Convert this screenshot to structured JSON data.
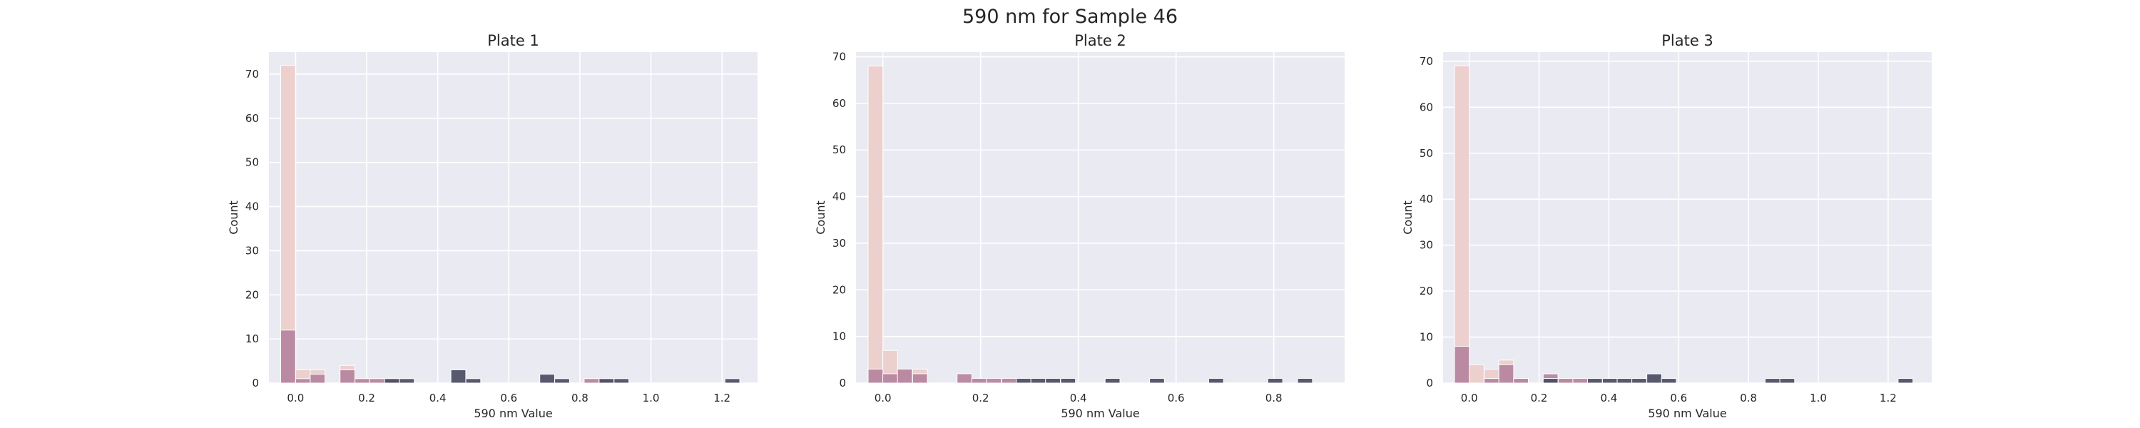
{
  "figure_title": "590 nm for Sample 46",
  "colors": {
    "background": "#eaeaf2",
    "grid": "#ffffff",
    "light": "#ebcdca",
    "mid": "#b583a0",
    "dark": "#4b4b63",
    "edge": "#ffffff"
  },
  "chart_data": [
    {
      "type": "histogram",
      "title": "Plate 1",
      "xlabel": "590 nm Value",
      "ylabel": "Count",
      "xlim": [
        -0.075,
        1.3
      ],
      "ylim": [
        0,
        75
      ],
      "xticks": [
        0.0,
        0.2,
        0.4,
        0.6,
        0.8,
        1.0,
        1.2
      ],
      "xtick_labels": [
        "0.0",
        "0.2",
        "0.4",
        "0.6",
        "0.8",
        "1.0",
        "1.2"
      ],
      "yticks": [
        0,
        10,
        20,
        30,
        40,
        50,
        60,
        70
      ],
      "ytick_labels": [
        "0",
        "10",
        "20",
        "30",
        "40",
        "50",
        "60",
        "70"
      ],
      "bin_width": 0.0417,
      "bins": [
        {
          "x": -0.021,
          "light": 72,
          "mid": 12,
          "dark": 0
        },
        {
          "x": 0.021,
          "light": 3,
          "mid": 1,
          "dark": 0
        },
        {
          "x": 0.062,
          "light": 3,
          "mid": 2,
          "dark": 0
        },
        {
          "x": 0.146,
          "light": 4,
          "mid": 3,
          "dark": 0
        },
        {
          "x": 0.188,
          "light": 1,
          "mid": 1,
          "dark": 0
        },
        {
          "x": 0.229,
          "light": 1,
          "mid": 1,
          "dark": 0
        },
        {
          "x": 0.271,
          "light": 0,
          "mid": 1,
          "dark": 1
        },
        {
          "x": 0.313,
          "light": 0,
          "mid": 0,
          "dark": 1
        },
        {
          "x": 0.458,
          "light": 0,
          "mid": 0,
          "dark": 3
        },
        {
          "x": 0.5,
          "light": 0,
          "mid": 0,
          "dark": 1
        },
        {
          "x": 0.708,
          "light": 0,
          "mid": 0,
          "dark": 2
        },
        {
          "x": 0.75,
          "light": 0,
          "mid": 0,
          "dark": 1
        },
        {
          "x": 0.833,
          "light": 1,
          "mid": 1,
          "dark": 0
        },
        {
          "x": 0.875,
          "light": 0,
          "mid": 1,
          "dark": 1
        },
        {
          "x": 0.917,
          "light": 0,
          "mid": 0,
          "dark": 1
        },
        {
          "x": 1.229,
          "light": 0,
          "mid": 0,
          "dark": 1
        }
      ]
    },
    {
      "type": "histogram",
      "title": "Plate 2",
      "xlabel": "590 nm Value",
      "ylabel": "Count",
      "xlim": [
        -0.055,
        0.945
      ],
      "ylim": [
        0,
        71
      ],
      "xticks": [
        0.0,
        0.2,
        0.4,
        0.6,
        0.8
      ],
      "xtick_labels": [
        "0.0",
        "0.2",
        "0.4",
        "0.6",
        "0.8"
      ],
      "yticks": [
        0,
        10,
        20,
        30,
        40,
        50,
        60,
        70
      ],
      "ytick_labels": [
        "0",
        "10",
        "20",
        "30",
        "40",
        "50",
        "60",
        "70"
      ],
      "bin_width": 0.0303,
      "bins": [
        {
          "x": -0.015,
          "light": 68,
          "mid": 3,
          "dark": 0
        },
        {
          "x": 0.015,
          "light": 7,
          "mid": 2,
          "dark": 0
        },
        {
          "x": 0.045,
          "light": 3,
          "mid": 3,
          "dark": 0
        },
        {
          "x": 0.076,
          "light": 3,
          "mid": 2,
          "dark": 0
        },
        {
          "x": 0.167,
          "light": 0,
          "mid": 2,
          "dark": 0
        },
        {
          "x": 0.197,
          "light": 1,
          "mid": 1,
          "dark": 0
        },
        {
          "x": 0.227,
          "light": 0,
          "mid": 1,
          "dark": 0
        },
        {
          "x": 0.258,
          "light": 1,
          "mid": 1,
          "dark": 0
        },
        {
          "x": 0.288,
          "light": 0,
          "mid": 0,
          "dark": 1
        },
        {
          "x": 0.318,
          "light": 0,
          "mid": 0,
          "dark": 1
        },
        {
          "x": 0.348,
          "light": 0,
          "mid": 0,
          "dark": 1
        },
        {
          "x": 0.379,
          "light": 0,
          "mid": 0,
          "dark": 1
        },
        {
          "x": 0.47,
          "light": 0,
          "mid": 0,
          "dark": 1
        },
        {
          "x": 0.561,
          "light": 0,
          "mid": 0,
          "dark": 1
        },
        {
          "x": 0.682,
          "light": 0,
          "mid": 0,
          "dark": 1
        },
        {
          "x": 0.803,
          "light": 0,
          "mid": 0,
          "dark": 1
        },
        {
          "x": 0.864,
          "light": 0,
          "mid": 0,
          "dark": 1
        }
      ]
    },
    {
      "type": "histogram",
      "title": "Plate 3",
      "xlabel": "590 nm Value",
      "ylabel": "Count",
      "xlim": [
        -0.075,
        1.325
      ],
      "ylim": [
        0,
        72
      ],
      "xticks": [
        0.0,
        0.2,
        0.4,
        0.6,
        0.8,
        1.0,
        1.2
      ],
      "xtick_labels": [
        "0.0",
        "0.2",
        "0.4",
        "0.6",
        "0.8",
        "1.0",
        "1.2"
      ],
      "yticks": [
        0,
        10,
        20,
        30,
        40,
        50,
        60,
        70
      ],
      "ytick_labels": [
        "0",
        "10",
        "20",
        "30",
        "40",
        "50",
        "60",
        "70"
      ],
      "bin_width": 0.0424,
      "bins": [
        {
          "x": -0.021,
          "light": 69,
          "mid": 8,
          "dark": 0
        },
        {
          "x": 0.021,
          "light": 4,
          "mid": 0,
          "dark": 0
        },
        {
          "x": 0.064,
          "light": 3,
          "mid": 1,
          "dark": 0
        },
        {
          "x": 0.106,
          "light": 5,
          "mid": 4,
          "dark": 0
        },
        {
          "x": 0.148,
          "light": 1,
          "mid": 1,
          "dark": 0
        },
        {
          "x": 0.233,
          "light": 0,
          "mid": 2,
          "dark": 1
        },
        {
          "x": 0.276,
          "light": 1,
          "mid": 1,
          "dark": 0
        },
        {
          "x": 0.318,
          "light": 0,
          "mid": 1,
          "dark": 0
        },
        {
          "x": 0.36,
          "light": 0,
          "mid": 0,
          "dark": 1
        },
        {
          "x": 0.403,
          "light": 0,
          "mid": 0,
          "dark": 1
        },
        {
          "x": 0.445,
          "light": 0,
          "mid": 0,
          "dark": 1
        },
        {
          "x": 0.487,
          "light": 0,
          "mid": 0,
          "dark": 1
        },
        {
          "x": 0.53,
          "light": 0,
          "mid": 0,
          "dark": 2
        },
        {
          "x": 0.572,
          "light": 0,
          "mid": 0,
          "dark": 1
        },
        {
          "x": 0.869,
          "light": 0,
          "mid": 0,
          "dark": 1
        },
        {
          "x": 0.911,
          "light": 0,
          "mid": 0,
          "dark": 1
        },
        {
          "x": 1.25,
          "light": 0,
          "mid": 0,
          "dark": 1
        }
      ]
    }
  ]
}
